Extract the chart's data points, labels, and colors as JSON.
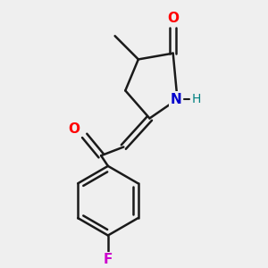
{
  "background_color": "#efefef",
  "bond_color": "#1a1a1a",
  "atom_colors": {
    "O": "#ff0000",
    "N": "#0000cc",
    "H": "#008080",
    "F": "#cc00cc"
  },
  "figsize": [
    3.0,
    3.0
  ],
  "dpi": 100
}
